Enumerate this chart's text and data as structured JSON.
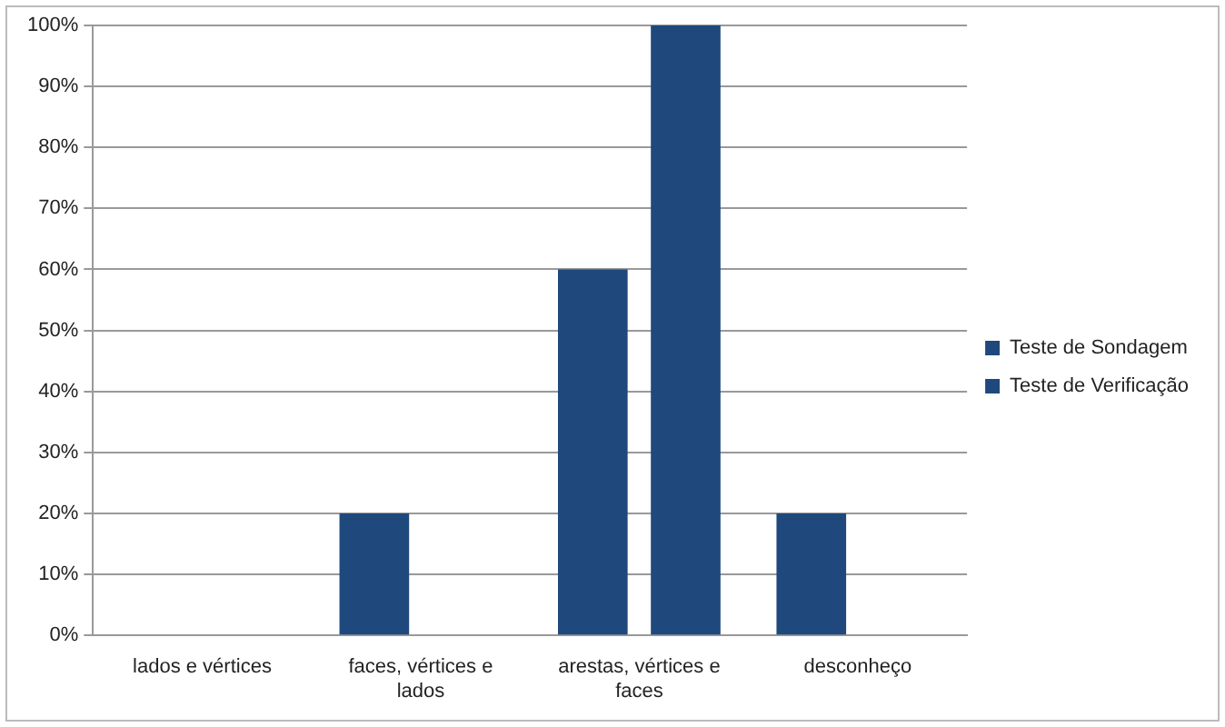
{
  "chart_data": {
    "type": "bar",
    "categories": [
      "lados e vértices",
      "faces, vértices e lados",
      "arestas, vértices e faces",
      "desconheço"
    ],
    "series": [
      {
        "name": "Teste de Sondagem",
        "color": "#1f497d",
        "values": [
          0,
          20,
          60,
          20
        ]
      },
      {
        "name": "Teste de Verificação",
        "color": "#1f497d",
        "values": [
          0,
          0,
          100,
          0
        ]
      }
    ],
    "ylim": [
      0,
      100
    ],
    "yticks": [
      {
        "value": 0,
        "label": "0%"
      },
      {
        "value": 10,
        "label": "10%"
      },
      {
        "value": 20,
        "label": "20%"
      },
      {
        "value": 30,
        "label": "30%"
      },
      {
        "value": 40,
        "label": "40%"
      },
      {
        "value": 50,
        "label": "50%"
      },
      {
        "value": 60,
        "label": "60%"
      },
      {
        "value": 70,
        "label": "70%"
      },
      {
        "value": 80,
        "label": "80%"
      },
      {
        "value": 90,
        "label": "90%"
      },
      {
        "value": 100,
        "label": "100%"
      }
    ],
    "grid": "y",
    "legend": "right"
  }
}
